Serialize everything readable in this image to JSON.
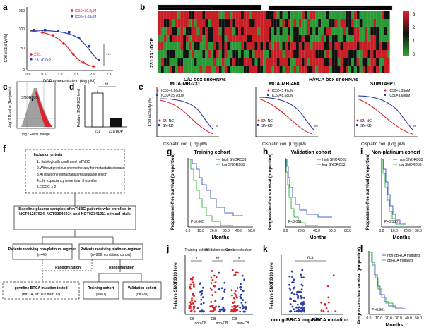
{
  "panels": {
    "a": {
      "letter": "a",
      "ylabel": "Cell viability(%)",
      "xlabel": "DDP concentration (log μM)",
      "legend": [
        "IC50=39.8μM",
        "IC50=7.83μM",
        "231",
        "231/DDP"
      ],
      "sig": "***",
      "yticks": [
        "150",
        "100",
        "50",
        "0"
      ],
      "xticks": [
        "0.0",
        "0.5",
        "1.0",
        "1.5",
        "2.0",
        "2.5"
      ]
    },
    "b": {
      "letter": "b",
      "row_label": "231 231/DDP",
      "group1": "C/D box snoRNAs",
      "group2": "H/ACA box snoRNAs",
      "scale": [
        "3",
        "2",
        "1",
        "0"
      ]
    },
    "c": {
      "letter": "c",
      "ylabel": "-log10 P-value (Benjamini)",
      "xlabel": "log2 Fold Change",
      "annot": "SNORD33"
    },
    "d": {
      "letter": "d",
      "ylabel": "Relative SNORD33 level",
      "sig": "**",
      "xticks": [
        "231",
        "231/DDP"
      ]
    },
    "e": {
      "letter": "e",
      "charts": [
        {
          "title": "MDA-MB-231",
          "ic1": "IC50=6.86μM",
          "ic2": "IC50=15.76μM",
          "sig": "**"
        },
        {
          "title": "MDA-MB-468",
          "ic1": "IC50=5.47μM",
          "ic2": "IC50=8.68μM",
          "sig": "***"
        },
        {
          "title": "SUM149PT",
          "ic1": "IC50=1.35μM",
          "ic2": "IC50=3.68μM",
          "sig": "**"
        }
      ],
      "legend": [
        "SN-NC",
        "SN-KD"
      ],
      "ylabel": "Cell viability (%)",
      "xlabel": "Cisplatin con. (Log μM)"
    },
    "f": {
      "letter": "f",
      "criteria_title": "Inclusion criteria",
      "criteria": [
        "1.Histologically confirmed mTNBC",
        "2.Without previous chemotherapy for metastatic disease",
        "3.At least one extracranial measurable lesion",
        "4.Life expectancy more than 3 months",
        "5.ECOG ≤ 2"
      ],
      "baseline": "Baseline plasma samples of mTNBC patients who enrolled in NCT01287624, NCT02546934 and NCT02341911 clinical trials",
      "nonplat": "Patients receiving non-platinum regimen",
      "nonplat_n": "(n=45)",
      "plat": "Patients receiving platinum-regimen",
      "plat_n": "(n=209, combined cohort)",
      "randomization": "Randomization",
      "germline": "germline BRCA mutation tested",
      "germline_n": "(n=114, wt: 102  mut: 12)",
      "training": "Training cohort",
      "training_n": "(n=81)",
      "validation": "Validation cohort",
      "validation_n": "(n=128)"
    },
    "ghi": {
      "ylabel": "Progression-free survival (proportion)",
      "xlabel": "Months",
      "legend": [
        "high SNORD33",
        "low SNORD33"
      ],
      "charts": [
        {
          "letter": "g",
          "title": "Training cohort",
          "p": "P<0.005",
          "xticks": [
            "0.0",
            "10.0",
            "20.0",
            "30.0",
            "40.0",
            "50.0"
          ]
        },
        {
          "letter": "h",
          "title": "Validation cohort",
          "p": "P<0.001",
          "xticks": [
            "0.0",
            "20.0",
            "40.0",
            "60.0",
            "80.0"
          ]
        },
        {
          "letter": "i",
          "title": "Non-platinum cohort",
          "p": "P=0.535",
          "xticks": [
            "0.0",
            "10.0",
            "20.0",
            "30.0"
          ]
        }
      ],
      "yticks": [
        "1.0",
        "0.8",
        "0.6",
        "0.4",
        "0.2",
        "0.0"
      ]
    },
    "j": {
      "letter": "j",
      "ylabel": "Relative SNORD33 level",
      "groups": [
        "Training cohort",
        "Validation cohort",
        "Combined cohort"
      ],
      "sigs": [
        "*",
        "**",
        "*"
      ],
      "xticks": [
        "CB",
        "non-CB",
        "CB",
        "non-CB",
        "CB",
        "non-CB"
      ]
    },
    "k": {
      "letter": "k",
      "ylabel": "Relative SNORD33 level",
      "sig": "n.s.",
      "xticks": [
        "non g-BRCA mutation",
        "g-BRCA mutation"
      ]
    },
    "l": {
      "letter": "l",
      "ylabel": "Progression-free survival (proportion)",
      "xlabel": "Months",
      "legend": [
        "non-gBRCA mutated",
        "gBRCA mutated"
      ],
      "p": "P=0.961",
      "xticks": [
        "0.0",
        "10.0",
        "20.0",
        "30.0",
        "40.0",
        "50.0"
      ]
    }
  },
  "colors": {
    "red": "#e0202a",
    "blue": "#2a3ea8",
    "green": "#2fa83a",
    "blue_km": "#4a64c8",
    "green_km": "#3cb44a"
  }
}
